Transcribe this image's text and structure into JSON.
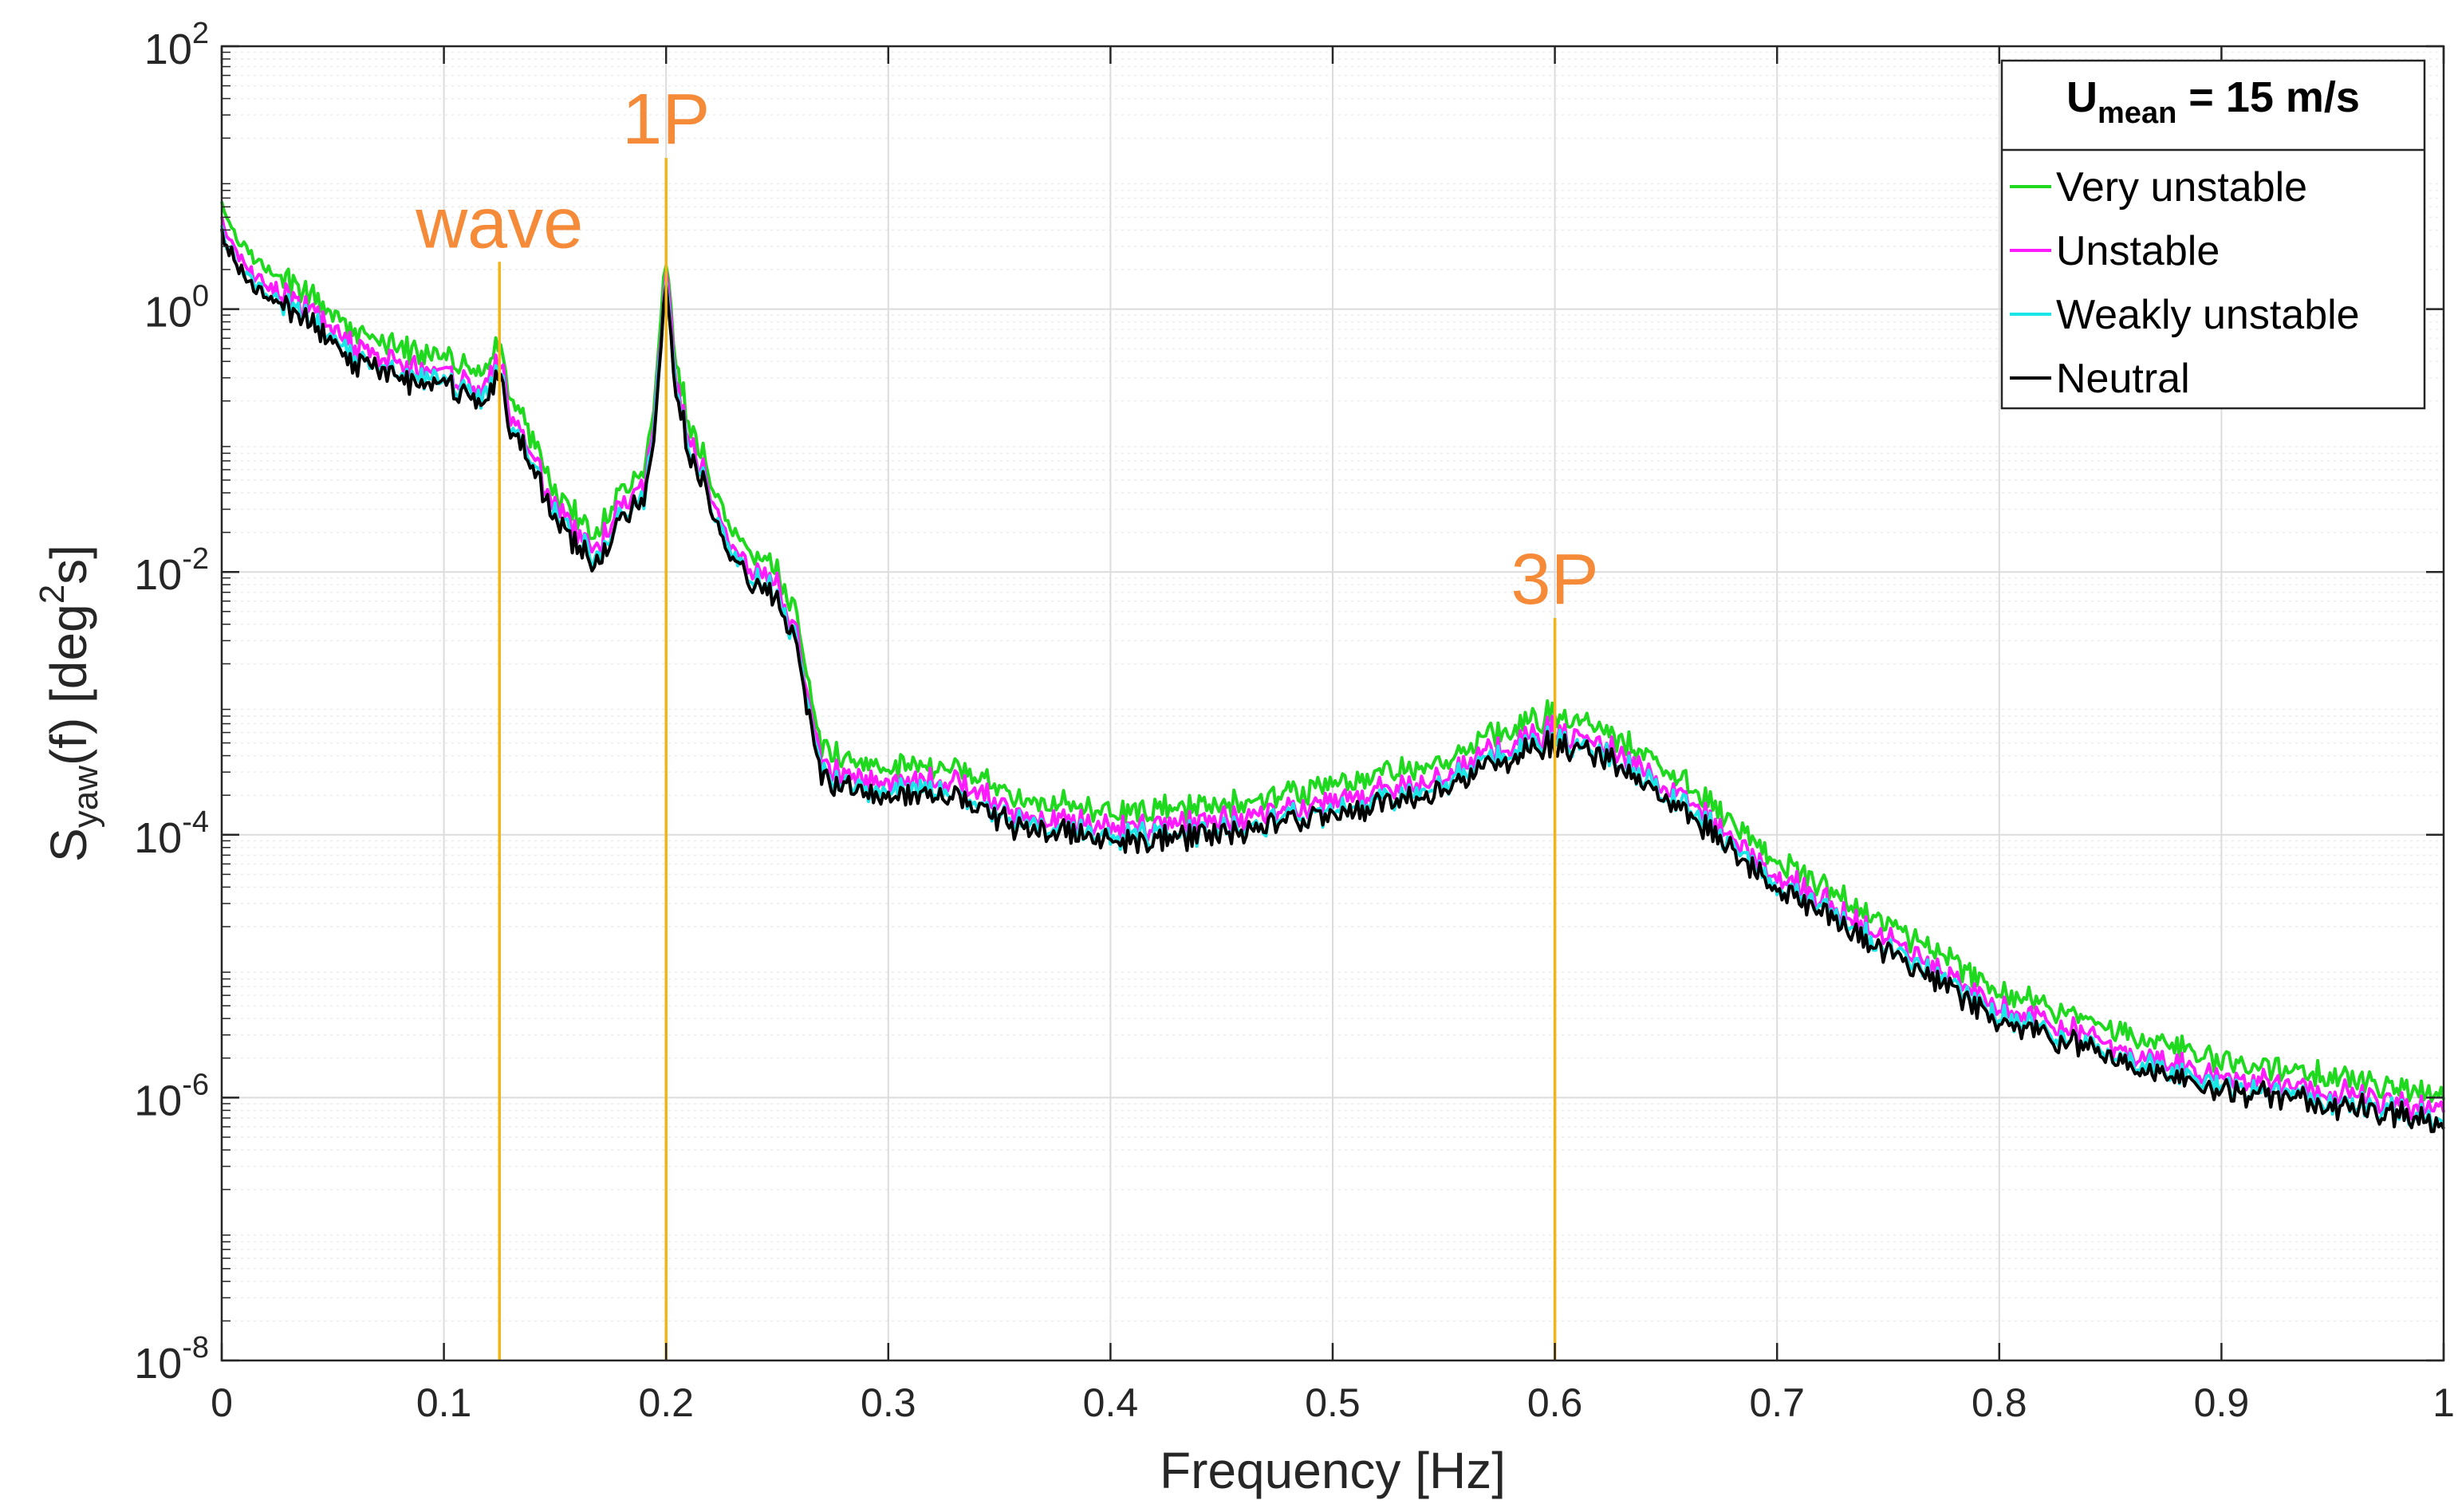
{
  "chart_data": {
    "type": "line",
    "xlabel": "Frequency [Hz]",
    "ylabel_main": "S",
    "ylabel_sub": "yaw",
    "ylabel_mid": "(f) [deg",
    "ylabel_sup": "2",
    "ylabel_end": "s]",
    "xlim": [
      0,
      1
    ],
    "ylim_exp": [
      -8,
      2
    ],
    "yscale": "log",
    "grid": true,
    "x_ticks": [
      {
        "value": 0,
        "label": "0"
      },
      {
        "value": 0.1,
        "label": "0.1"
      },
      {
        "value": 0.2,
        "label": "0.2"
      },
      {
        "value": 0.3,
        "label": "0.3"
      },
      {
        "value": 0.4,
        "label": "0.4"
      },
      {
        "value": 0.5,
        "label": "0.5"
      },
      {
        "value": 0.6,
        "label": "0.6"
      },
      {
        "value": 0.7,
        "label": "0.7"
      },
      {
        "value": 0.8,
        "label": "0.8"
      },
      {
        "value": 0.9,
        "label": "0.9"
      },
      {
        "value": 1,
        "label": "1"
      }
    ],
    "y_ticks": [
      {
        "exp": 2,
        "base": "10",
        "sup": "2"
      },
      {
        "exp": 0,
        "base": "10",
        "sup": "0"
      },
      {
        "exp": -2,
        "base": "10",
        "sup": "-2"
      },
      {
        "exp": -4,
        "base": "10",
        "sup": "-4"
      },
      {
        "exp": -6,
        "base": "10",
        "sup": "-6"
      },
      {
        "exp": -8,
        "base": "10",
        "sup": "-8"
      }
    ],
    "annotations": [
      {
        "label": "wave",
        "x": 0.125,
        "y_top_exp": 0.36
      },
      {
        "label": "1P",
        "x": 0.2,
        "y_top_exp": 1.15
      },
      {
        "label": "3P",
        "x": 0.6,
        "y_top_exp": -2.35
      }
    ],
    "annotation_color": "#f58a38",
    "marker_line_color": "#f2b418",
    "legend": {
      "title_main": "U",
      "title_sub": "mean",
      "title_rest": " = 15 m/s",
      "position": "top-right"
    },
    "series": [
      {
        "name": "Very unstable",
        "color": "#1ed91e",
        "offset": 0.12
      },
      {
        "name": "Unstable",
        "color": "#ff1aff",
        "offset": 0.0
      },
      {
        "name": "Weakly unstable",
        "color": "#19e6e6",
        "offset": -0.07
      },
      {
        "name": "Neutral",
        "color": "#000000",
        "offset": -0.1
      }
    ],
    "base_curve": {
      "x": [
        0,
        0.005,
        0.01,
        0.02,
        0.03,
        0.04,
        0.05,
        0.06,
        0.07,
        0.08,
        0.09,
        0.1,
        0.11,
        0.118,
        0.125,
        0.13,
        0.14,
        0.15,
        0.16,
        0.17,
        0.175,
        0.18,
        0.19,
        0.195,
        0.2,
        0.205,
        0.21,
        0.22,
        0.23,
        0.24,
        0.25,
        0.26,
        0.265,
        0.27,
        0.28,
        0.3,
        0.33,
        0.36,
        0.4,
        0.45,
        0.5,
        0.55,
        0.58,
        0.6,
        0.62,
        0.65,
        0.7,
        0.75,
        0.8,
        0.85,
        0.9,
        0.95,
        1.0
      ],
      "log10_y": [
        0.7,
        0.45,
        0.35,
        0.2,
        0.1,
        0.0,
        -0.15,
        -0.3,
        -0.35,
        -0.42,
        -0.45,
        -0.48,
        -0.55,
        -0.65,
        -0.35,
        -0.8,
        -1.1,
        -1.5,
        -1.7,
        -1.85,
        -1.6,
        -1.5,
        -1.35,
        -0.8,
        0.3,
        -0.6,
        -0.95,
        -1.4,
        -1.8,
        -2.0,
        -2.1,
        -2.5,
        -3.1,
        -3.45,
        -3.55,
        -3.6,
        -3.6,
        -3.85,
        -3.95,
        -3.9,
        -3.75,
        -3.55,
        -3.3,
        -3.2,
        -3.3,
        -3.6,
        -4.3,
        -4.8,
        -5.3,
        -5.6,
        -5.85,
        -5.95,
        -6.1
      ]
    }
  }
}
